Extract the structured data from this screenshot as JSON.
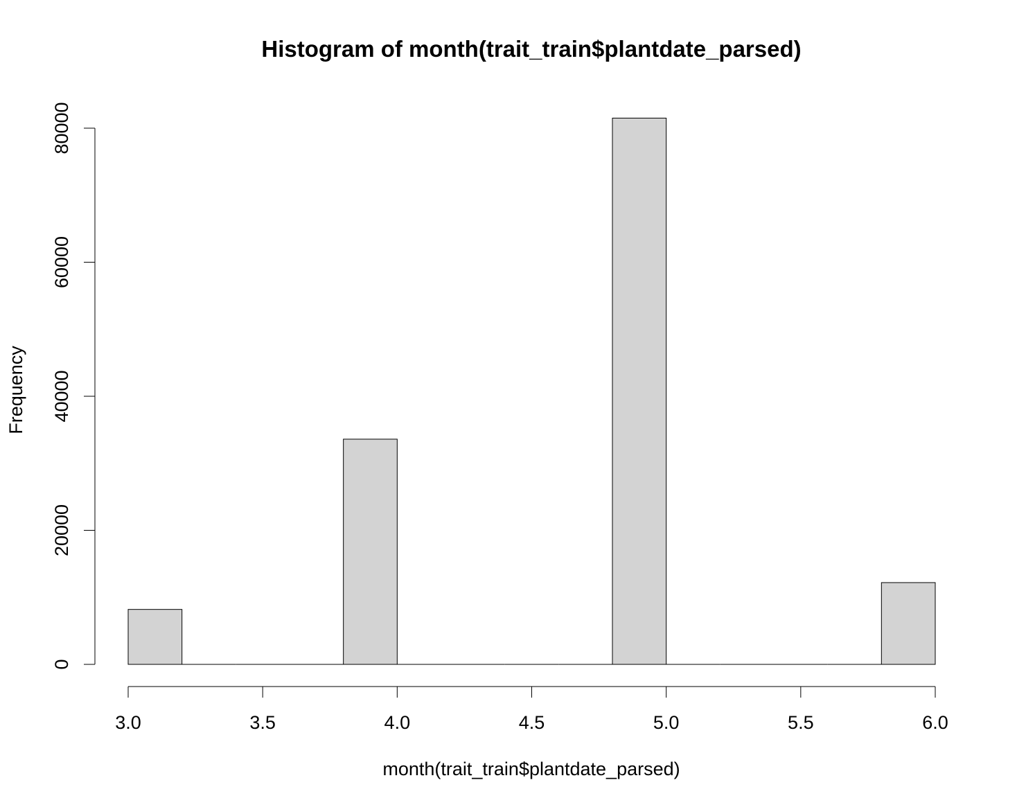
{
  "chart_data": {
    "type": "bar",
    "title": "Histogram of month(trait_train$plantdate_parsed)",
    "xlabel": "month(trait_train$plantdate_parsed)",
    "ylabel": "Frequency",
    "xlim": [
      3.0,
      6.0
    ],
    "ylim": [
      0,
      80000
    ],
    "x_ticks": [
      "3.0",
      "3.5",
      "4.0",
      "4.5",
      "5.0",
      "5.5",
      "6.0"
    ],
    "y_ticks": [
      "0",
      "20000",
      "40000",
      "60000",
      "80000"
    ],
    "bins": [
      {
        "start": 3.0,
        "end": 3.2,
        "value": 8200
      },
      {
        "start": 3.2,
        "end": 3.4,
        "value": 0
      },
      {
        "start": 3.4,
        "end": 3.6,
        "value": 0
      },
      {
        "start": 3.6,
        "end": 3.8,
        "value": 0
      },
      {
        "start": 3.8,
        "end": 4.0,
        "value": 33600
      },
      {
        "start": 4.0,
        "end": 4.2,
        "value": 0
      },
      {
        "start": 4.2,
        "end": 4.4,
        "value": 0
      },
      {
        "start": 4.4,
        "end": 4.6,
        "value": 0
      },
      {
        "start": 4.6,
        "end": 4.8,
        "value": 0
      },
      {
        "start": 4.8,
        "end": 5.0,
        "value": 81500
      },
      {
        "start": 5.0,
        "end": 5.2,
        "value": 0
      },
      {
        "start": 5.2,
        "end": 5.4,
        "value": 0
      },
      {
        "start": 5.4,
        "end": 5.6,
        "value": 0
      },
      {
        "start": 5.6,
        "end": 5.8,
        "value": 0
      },
      {
        "start": 5.8,
        "end": 6.0,
        "value": 12200
      }
    ],
    "bar_fill": "#d3d3d3",
    "bar_stroke": "#000000",
    "grid": false
  }
}
